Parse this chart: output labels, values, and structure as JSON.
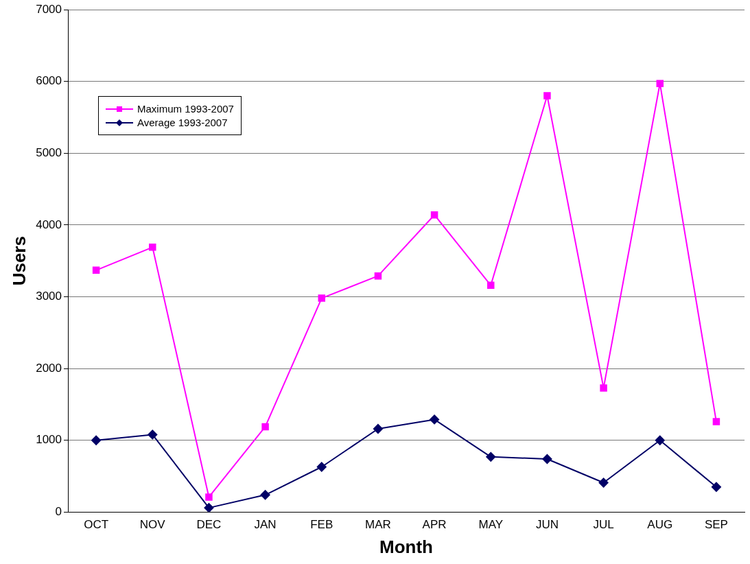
{
  "chart_data": {
    "type": "line",
    "xlabel": "Month",
    "ylabel": "Users",
    "categories": [
      "OCT",
      "NOV",
      "DEC",
      "JAN",
      "FEB",
      "MAR",
      "APR",
      "MAY",
      "JUN",
      "JUL",
      "AUG",
      "SEP"
    ],
    "series": [
      {
        "name": "Maximum 1993-2007",
        "color": "#ff00ff",
        "marker": "square",
        "values": [
          3370,
          3690,
          210,
          1190,
          2980,
          3290,
          4140,
          3160,
          5800,
          1730,
          5970,
          1260
        ]
      },
      {
        "name": "Average 1993-2007",
        "color": "#000066",
        "marker": "diamond",
        "values": [
          1000,
          1080,
          60,
          240,
          630,
          1160,
          1290,
          770,
          740,
          410,
          1000,
          350
        ]
      }
    ],
    "ylim": [
      0,
      7000
    ],
    "yticks": [
      0,
      1000,
      2000,
      3000,
      4000,
      5000,
      6000,
      7000
    ],
    "grid": "y",
    "legend": "top left",
    "line_style": "solid"
  }
}
